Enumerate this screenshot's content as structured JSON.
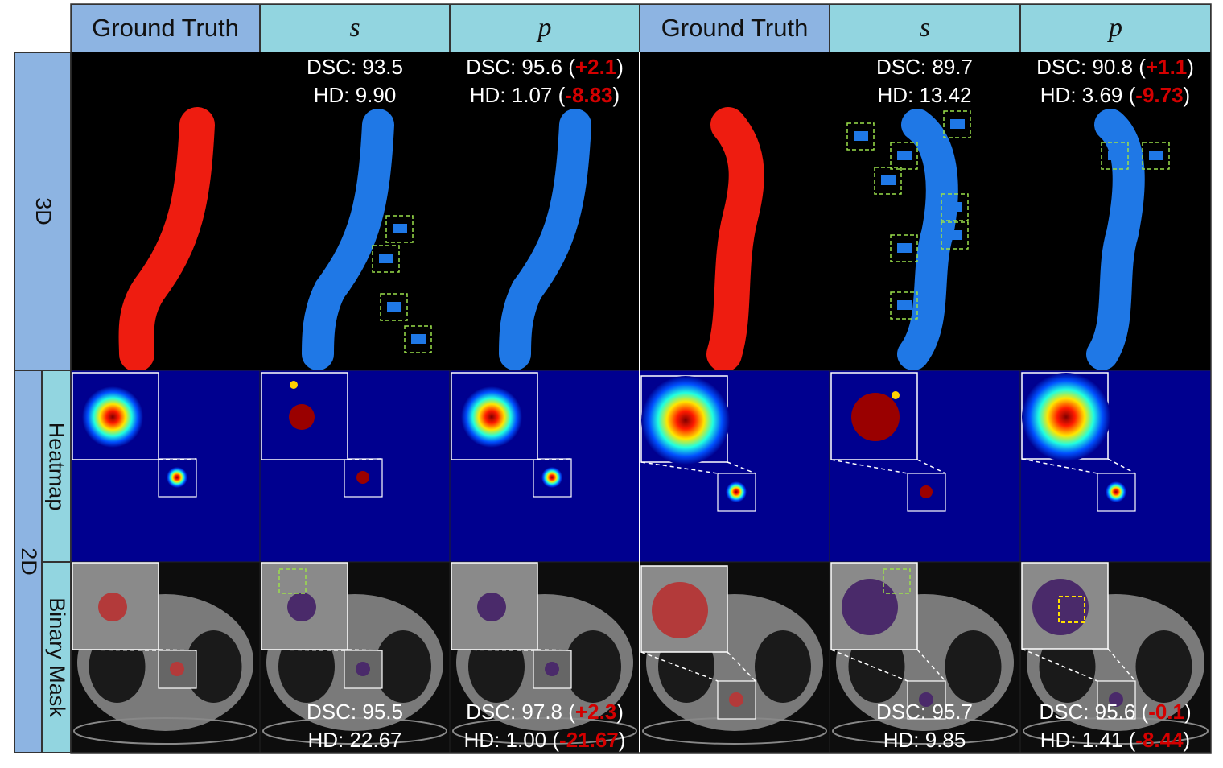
{
  "headers": [
    "Ground Truth",
    "s",
    "p",
    "Ground Truth",
    "s",
    "p"
  ],
  "row_labels": {
    "three_d": "3D",
    "two_d": "2D",
    "heatmap": "Heatmap",
    "binary_mask": "Binary Mask"
  },
  "metrics": {
    "three_d": [
      {
        "dsc": "DSC: 93.5",
        "hd": "HD: 9.90"
      },
      {
        "dsc": "DSC: 95.6",
        "dsc_delta": "+2.1",
        "hd": "HD: 1.07",
        "hd_delta": "-8.83"
      },
      {
        "dsc": "DSC: 89.7",
        "hd": "HD: 13.42"
      },
      {
        "dsc": "DSC: 90.8",
        "dsc_delta": "+1.1",
        "hd": "HD: 3.69",
        "hd_delta": "-9.73"
      }
    ],
    "binary_mask": [
      {
        "dsc": "DSC: 95.5",
        "hd": "HD: 22.67"
      },
      {
        "dsc": "DSC: 97.8",
        "dsc_delta": "+2.3",
        "hd": "HD: 1.00",
        "hd_delta": "-21.67"
      },
      {
        "dsc": "DSC: 95.7",
        "hd": "HD: 9.85"
      },
      {
        "dsc": "DSC: 95.6",
        "dsc_delta": "-0.1",
        "hd": "HD: 1.41",
        "hd_delta": "-8.44"
      }
    ]
  }
}
